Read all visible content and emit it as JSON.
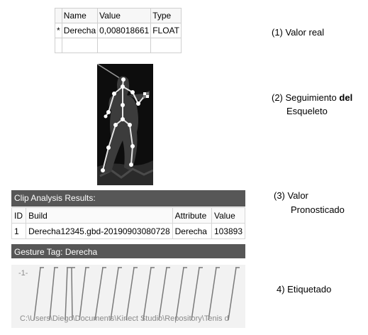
{
  "value_table": {
    "columns": [
      "Name",
      "Value",
      "Type"
    ],
    "row_marker": "*",
    "row": {
      "name": "Derecha",
      "value": "0,008018661",
      "type": "FLOAT"
    }
  },
  "captions": {
    "c1": "(1) Valor real",
    "c2a": "(2) Seguimiento",
    "c2b": "del",
    "c2c": "Esqueleto",
    "c3a": "(3)  Valor",
    "c3b": "Pronosticado",
    "c4": "4)  Etiquetado"
  },
  "clip": {
    "title": "Clip Analysis Results:",
    "columns": [
      "ID",
      "Build",
      "Attribute",
      "Value"
    ],
    "row": {
      "id": "1",
      "build": "Derecha12345.gbd-20190903080728",
      "attribute": "Derecha",
      "value": "103893"
    }
  },
  "gesture": {
    "title": "Gesture Tag: Derecha",
    "marker_label": "-1-",
    "path": "C:\\Users\\Diego\\Documents\\Kinect Studio\\Repository\\Tenis d"
  },
  "colors": {
    "header_bar": "#575757",
    "skeleton_bg": "#0d0d0d"
  }
}
